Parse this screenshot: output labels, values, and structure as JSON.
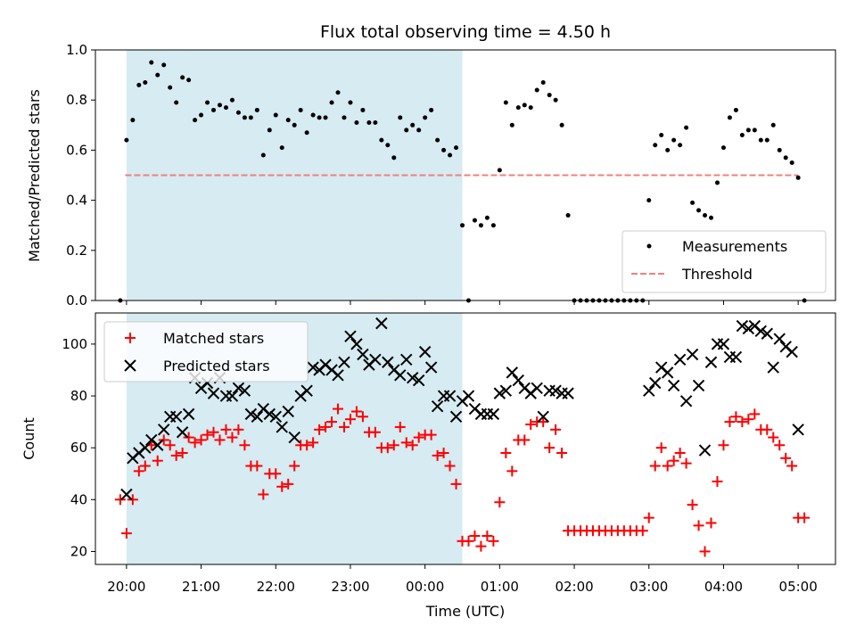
{
  "chart_data": {
    "title": "Flux total observing time = 4.50 h",
    "xlabel": "Time (UTC)",
    "x_ticks": [
      "20:00",
      "21:00",
      "22:00",
      "23:00",
      "00:00",
      "01:00",
      "02:00",
      "03:00",
      "04:00",
      "05:00"
    ],
    "shaded_region": {
      "from": "20:00",
      "to": "00:30",
      "color": "#add8e6"
    },
    "panels": [
      {
        "type": "scatter",
        "ylabel": "Matched/Predicted stars",
        "ylim": [
          0,
          1.0
        ],
        "y_ticks": [
          "0.0",
          "0.2",
          "0.4",
          "0.6",
          "0.8",
          "1.0"
        ],
        "legend": "lower-right",
        "threshold": {
          "name": "Threshold",
          "value": 0.5,
          "from": "19:59",
          "to": "05:00",
          "color": "#f08080"
        },
        "series": [
          {
            "name": "Measurements",
            "color": "#000000",
            "marker": "dot",
            "x": [
              "19:55",
              "20:00",
              "20:05",
              "20:10",
              "20:15",
              "20:20",
              "20:25",
              "20:30",
              "20:35",
              "20:40",
              "20:45",
              "20:50",
              "20:55",
              "21:00",
              "21:05",
              "21:10",
              "21:15",
              "21:20",
              "21:25",
              "21:30",
              "21:35",
              "21:40",
              "21:45",
              "21:50",
              "21:55",
              "22:00",
              "22:05",
              "22:10",
              "22:15",
              "22:20",
              "22:25",
              "22:30",
              "22:35",
              "22:40",
              "22:45",
              "22:50",
              "22:55",
              "23:00",
              "23:05",
              "23:10",
              "23:15",
              "23:20",
              "23:25",
              "23:30",
              "23:35",
              "23:40",
              "23:45",
              "23:50",
              "23:55",
              "00:00",
              "00:05",
              "00:10",
              "00:15",
              "00:20",
              "00:25",
              "00:30",
              "00:35",
              "00:40",
              "00:45",
              "00:50",
              "00:55",
              "01:00",
              "01:05",
              "01:10",
              "01:15",
              "01:20",
              "01:25",
              "01:30",
              "01:35",
              "01:40",
              "01:45",
              "01:50",
              "01:55",
              "02:00",
              "02:05",
              "02:10",
              "02:15",
              "02:20",
              "02:25",
              "02:30",
              "02:35",
              "02:40",
              "02:45",
              "02:50",
              "02:55",
              "03:00",
              "03:05",
              "03:10",
              "03:15",
              "03:20",
              "03:25",
              "03:30",
              "03:35",
              "03:40",
              "03:45",
              "03:50",
              "03:55",
              "04:00",
              "04:05",
              "04:10",
              "04:15",
              "04:20",
              "04:25",
              "04:30",
              "04:35",
              "04:40",
              "04:45",
              "04:50",
              "04:55",
              "05:00",
              "05:05"
            ],
            "y": [
              0.0,
              0.64,
              0.72,
              0.86,
              0.87,
              0.95,
              0.9,
              0.94,
              0.85,
              0.79,
              0.89,
              0.88,
              0.72,
              0.74,
              0.79,
              0.76,
              0.78,
              0.77,
              0.8,
              0.75,
              0.73,
              0.73,
              0.76,
              0.58,
              0.68,
              0.74,
              0.61,
              0.72,
              0.7,
              0.76,
              0.67,
              0.74,
              0.73,
              0.73,
              0.79,
              0.83,
              0.73,
              0.79,
              0.71,
              0.76,
              0.71,
              0.71,
              0.64,
              0.62,
              0.57,
              0.73,
              0.68,
              0.7,
              0.68,
              0.73,
              0.76,
              0.64,
              0.6,
              0.58,
              0.61,
              0.3,
              0.0,
              0.32,
              0.3,
              0.33,
              0.3,
              0.52,
              0.79,
              0.7,
              0.77,
              0.78,
              0.77,
              0.84,
              0.87,
              0.82,
              0.8,
              0.7,
              0.34,
              0.0,
              0.0,
              0.0,
              0.0,
              0.0,
              0.0,
              0.0,
              0.0,
              0.0,
              0.0,
              0.0,
              0.0,
              0.4,
              0.62,
              0.66,
              0.6,
              0.64,
              0.62,
              0.69,
              0.39,
              0.36,
              0.34,
              0.33,
              0.47,
              0.61,
              0.73,
              0.76,
              0.66,
              0.68,
              0.68,
              0.64,
              0.64,
              0.7,
              0.6,
              0.57,
              0.55,
              0.49,
              0.0
            ]
          }
        ]
      },
      {
        "type": "scatter",
        "ylabel": "Count",
        "ylim": [
          15,
          112
        ],
        "y_ticks": [
          "20",
          "40",
          "60",
          "80",
          "100"
        ],
        "legend": "upper-left",
        "series": [
          {
            "name": "Matched stars",
            "color": "#ff0000",
            "marker": "plus",
            "x": [
              "19:55",
              "20:00",
              "20:05",
              "20:10",
              "20:15",
              "20:20",
              "20:25",
              "20:30",
              "20:35",
              "20:40",
              "20:45",
              "20:50",
              "20:55",
              "21:00",
              "21:05",
              "21:10",
              "21:15",
              "21:20",
              "21:25",
              "21:30",
              "21:35",
              "21:40",
              "21:45",
              "21:50",
              "21:55",
              "22:00",
              "22:05",
              "22:10",
              "22:15",
              "22:20",
              "22:25",
              "22:30",
              "22:35",
              "22:40",
              "22:45",
              "22:50",
              "22:55",
              "23:00",
              "23:05",
              "23:10",
              "23:15",
              "23:20",
              "23:25",
              "23:30",
              "23:35",
              "23:40",
              "23:45",
              "23:50",
              "23:55",
              "00:00",
              "00:05",
              "00:10",
              "00:15",
              "00:20",
              "00:25",
              "00:30",
              "00:35",
              "00:40",
              "00:45",
              "00:50",
              "00:55",
              "01:00",
              "01:05",
              "01:10",
              "01:15",
              "01:20",
              "01:25",
              "01:30",
              "01:35",
              "01:40",
              "01:45",
              "01:50",
              "01:55",
              "02:00",
              "02:05",
              "02:10",
              "02:15",
              "02:20",
              "02:25",
              "02:30",
              "02:35",
              "02:40",
              "02:45",
              "02:50",
              "02:55",
              "03:00",
              "03:05",
              "03:10",
              "03:15",
              "03:20",
              "03:25",
              "03:30",
              "03:35",
              "03:40",
              "03:45",
              "03:50",
              "03:55",
              "04:00",
              "04:05",
              "04:10",
              "04:15",
              "04:20",
              "04:25",
              "04:30",
              "04:35",
              "04:40",
              "04:45",
              "04:50",
              "04:55",
              "05:00",
              "05:05"
            ],
            "y": [
              40,
              27,
              40,
              51,
              53,
              61,
              55,
              63,
              61,
              57,
              58,
              64,
              62,
              63,
              65,
              66,
              63,
              67,
              64,
              67,
              61,
              53,
              53,
              42,
              50,
              50,
              45,
              46,
              53,
              61,
              61,
              62,
              67,
              68,
              70,
              75,
              68,
              71,
              74,
              72,
              66,
              66,
              60,
              60,
              61,
              68,
              62,
              61,
              64,
              65,
              65,
              57,
              58,
              53,
              46,
              24,
              24,
              26,
              22,
              26,
              24,
              39,
              58,
              51,
              63,
              63,
              69,
              70,
              70,
              60,
              67,
              58,
              28,
              28,
              28,
              28,
              28,
              28,
              28,
              28,
              28,
              28,
              28,
              28,
              28,
              33,
              53,
              60,
              53,
              55,
              58,
              54,
              38,
              30,
              20,
              31,
              47,
              61,
              70,
              72,
              70,
              71,
              73,
              67,
              67,
              64,
              61,
              56,
              53,
              33,
              33
            ]
          },
          {
            "name": "Predicted stars",
            "color": "#000000",
            "marker": "x",
            "x": [
              "20:00",
              "20:05",
              "20:10",
              "20:15",
              "20:20",
              "20:25",
              "20:30",
              "20:35",
              "20:40",
              "20:45",
              "20:50",
              "20:55",
              "21:00",
              "21:05",
              "21:10",
              "21:15",
              "21:20",
              "21:25",
              "21:30",
              "21:35",
              "21:40",
              "21:45",
              "21:50",
              "21:55",
              "22:00",
              "22:05",
              "22:10",
              "22:15",
              "22:20",
              "22:25",
              "22:30",
              "22:35",
              "22:40",
              "22:45",
              "22:50",
              "22:55",
              "23:00",
              "23:05",
              "23:10",
              "23:15",
              "23:20",
              "23:25",
              "23:30",
              "23:35",
              "23:40",
              "23:45",
              "23:50",
              "23:55",
              "00:00",
              "00:05",
              "00:10",
              "00:15",
              "00:20",
              "00:25",
              "00:30",
              "00:35",
              "00:40",
              "00:45",
              "00:50",
              "00:55",
              "01:00",
              "01:05",
              "01:10",
              "01:15",
              "01:20",
              "01:25",
              "01:30",
              "01:35",
              "01:40",
              "01:45",
              "01:50",
              "01:55",
              "03:00",
              "03:05",
              "03:10",
              "03:15",
              "03:20",
              "03:25",
              "03:30",
              "03:35",
              "03:40",
              "03:45",
              "03:50",
              "03:55",
              "04:00",
              "04:05",
              "04:10",
              "04:15",
              "04:20",
              "04:25",
              "04:30",
              "04:35",
              "04:40",
              "04:45",
              "04:50",
              "04:55",
              "05:00"
            ],
            "y": [
              42,
              56,
              58,
              60,
              63,
              61,
              67,
              72,
              72,
              66,
              73,
              87,
              83,
              85,
              81,
              87,
              80,
              80,
              83,
              82,
              73,
              72,
              75,
              73,
              72,
              68,
              74,
              64,
              80,
              82,
              91,
              90,
              92,
              90,
              88,
              93,
              103,
              100,
              96,
              92,
              94,
              108,
              93,
              90,
              88,
              94,
              87,
              86,
              97,
              91,
              76,
              80,
              80,
              72,
              78,
              80,
              75,
              73,
              73,
              73,
              81,
              82,
              89,
              86,
              83,
              81,
              83,
              72,
              82,
              82,
              81,
              81,
              82,
              85,
              91,
              89,
              84,
              94,
              78,
              96,
              84,
              59,
              93,
              100,
              100,
              95,
              95,
              107,
              106,
              107,
              105,
              104,
              91,
              102,
              99,
              97,
              67
            ]
          }
        ]
      }
    ]
  }
}
